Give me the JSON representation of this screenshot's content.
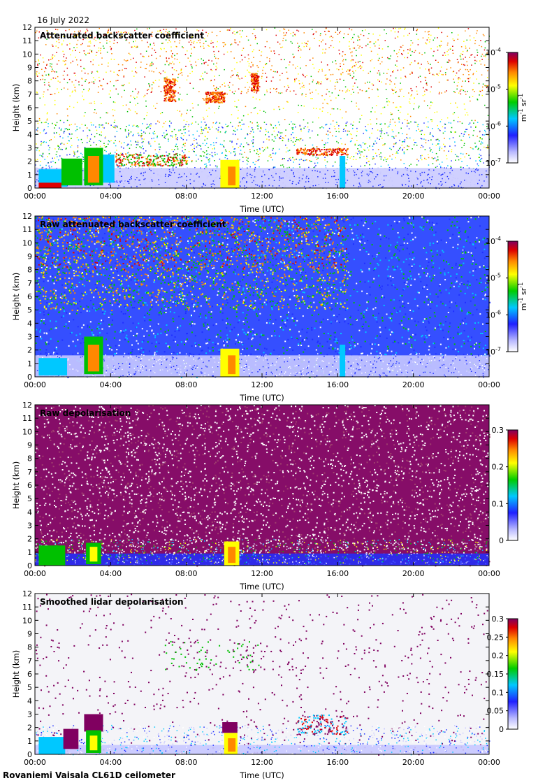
{
  "date_label": "16 July 2022",
  "footer": "Rovaniemi Vaisala CL61D ceilometer",
  "chart_data": [
    {
      "type": "heatmap",
      "title": "Attenuated backscatter coefficient",
      "xlabel": "Time (UTC)",
      "ylabel": "Height (km)",
      "xticks": [
        "00:00",
        "04:00",
        "08:00",
        "12:00",
        "16:00",
        "20:00",
        "00:00"
      ],
      "yticks": [
        "0",
        "1",
        "2",
        "3",
        "4",
        "5",
        "6",
        "7",
        "8",
        "9",
        "10",
        "11",
        "12"
      ],
      "ylim": [
        0,
        12
      ],
      "colorbar": {
        "scale": "log",
        "range": [
          1e-07,
          0.0001
        ],
        "tick_base": "10",
        "tick_exponents": [
          "-7",
          "-6",
          "-5",
          "-4"
        ],
        "unit_parts": [
          "m",
          "-1",
          " sr",
          "-1"
        ]
      },
      "colors": [
        "#ffffff",
        "#5555ff",
        "#00aa00",
        "#ffff00",
        "#ff8800",
        "#cc0000",
        "#800080"
      ]
    },
    {
      "type": "heatmap",
      "title": "Raw attenuated backscatter coefficient",
      "xlabel": "Time (UTC)",
      "ylabel": "Height (km)",
      "xticks": [
        "00:00",
        "04:00",
        "08:00",
        "12:00",
        "16:00",
        "20:00",
        "00:00"
      ],
      "yticks": [
        "0",
        "1",
        "2",
        "3",
        "4",
        "5",
        "6",
        "7",
        "8",
        "9",
        "10",
        "11",
        "12"
      ],
      "ylim": [
        0,
        12
      ],
      "colorbar": {
        "scale": "log",
        "range": [
          1e-07,
          0.0001
        ],
        "tick_base": "10",
        "tick_exponents": [
          "-7",
          "-6",
          "-5",
          "-4"
        ],
        "unit_parts": [
          "m",
          "-1",
          " sr",
          "-1"
        ]
      }
    },
    {
      "type": "heatmap",
      "title": "Raw depolarisation",
      "xlabel": "Time (UTC)",
      "ylabel": "Height (km)",
      "xticks": [
        "00:00",
        "04:00",
        "08:00",
        "12:00",
        "16:00",
        "20:00",
        "00:00"
      ],
      "yticks": [
        "0",
        "1",
        "2",
        "3",
        "4",
        "5",
        "6",
        "7",
        "8",
        "9",
        "10",
        "11",
        "12"
      ],
      "ylim": [
        0,
        12
      ],
      "colorbar": {
        "scale": "linear",
        "range": [
          0,
          0.3
        ],
        "ticks": [
          "0",
          "0.1",
          "0.2",
          "0.3"
        ]
      }
    },
    {
      "type": "heatmap",
      "title": "Smoothed lidar depolarisation",
      "xlabel": "Time (UTC)",
      "ylabel": "Height (km)",
      "xticks": [
        "00:00",
        "04:00",
        "08:00",
        "12:00",
        "16:00",
        "20:00",
        "00:00"
      ],
      "yticks": [
        "0",
        "1",
        "2",
        "3",
        "4",
        "5",
        "6",
        "7",
        "8",
        "9",
        "10",
        "11",
        "12"
      ],
      "ylim": [
        0,
        12
      ],
      "colorbar": {
        "scale": "linear",
        "range": [
          0,
          0.3
        ],
        "ticks": [
          "0",
          "0.05",
          "0.1",
          "0.15",
          "0.2",
          "0.25",
          "0.3"
        ]
      }
    }
  ]
}
